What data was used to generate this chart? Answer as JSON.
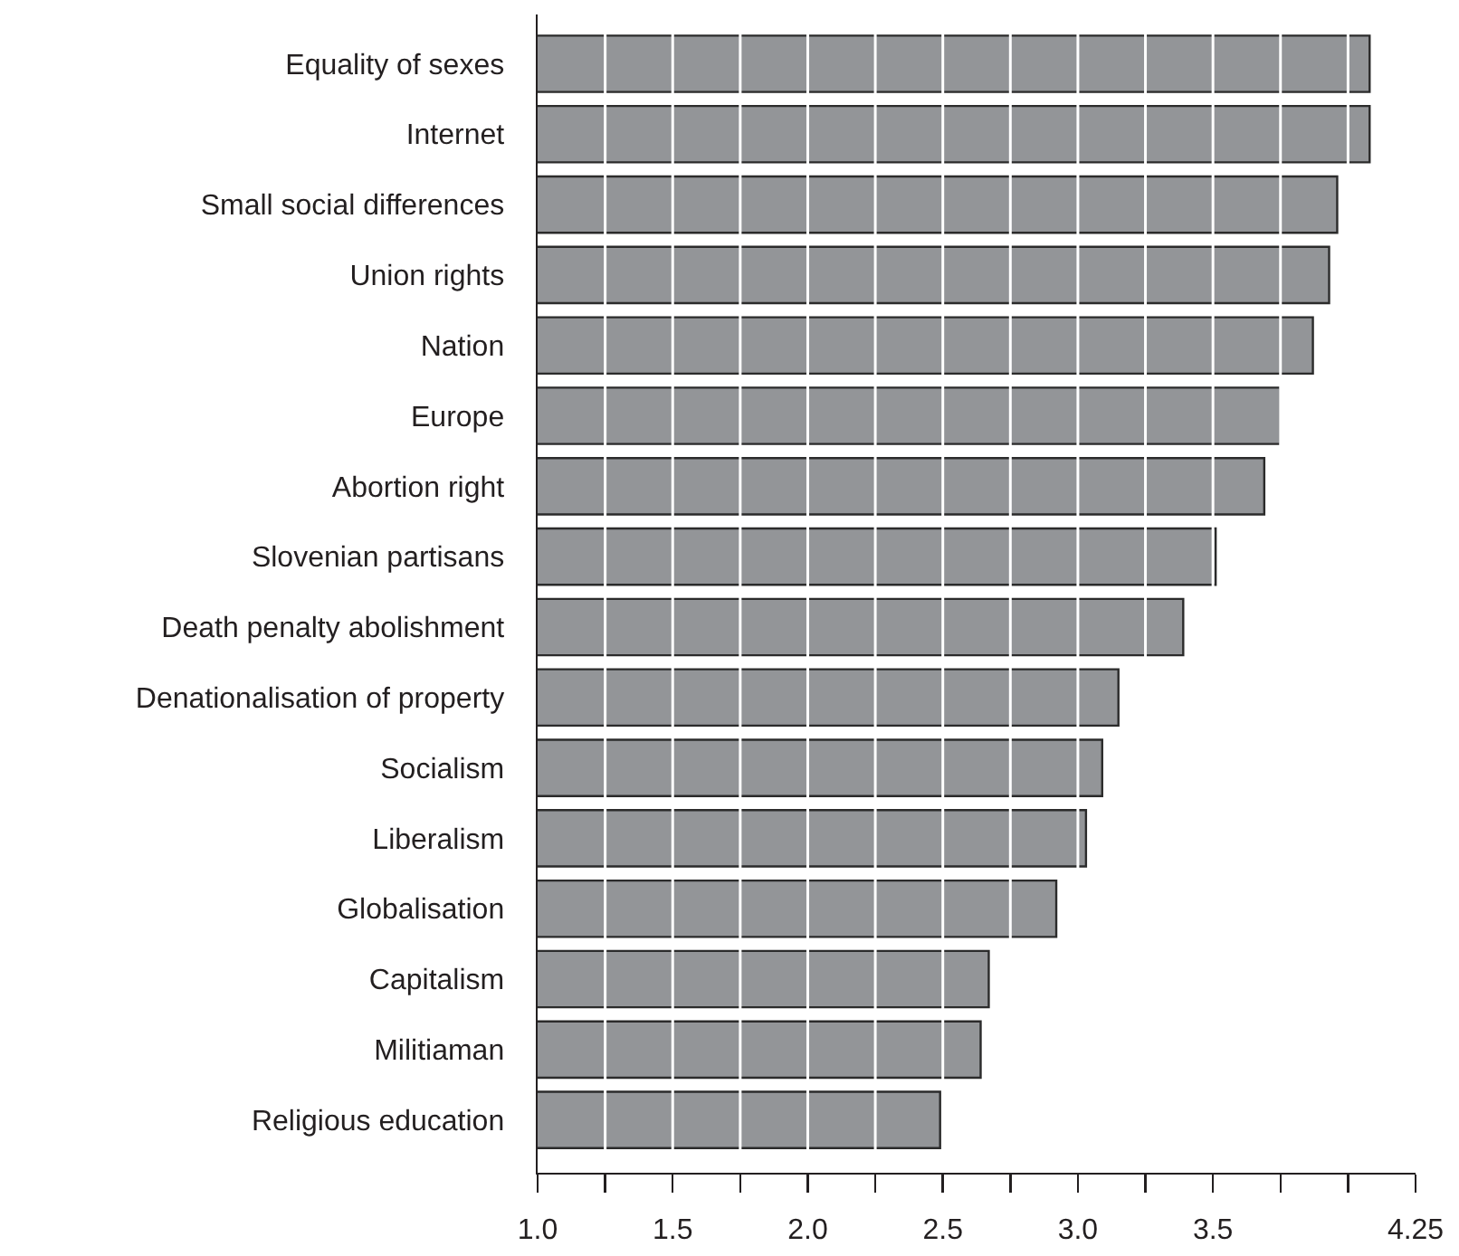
{
  "chart_data": {
    "type": "bar",
    "orientation": "horizontal",
    "categories": [
      "Equality of sexes",
      "Internet",
      "Small social differences",
      "Union rights",
      "Nation",
      "Europe",
      "Abortion right",
      "Slovenian partisans",
      "Death penalty abolishment",
      "Denationalisation of property",
      "Socialism",
      "Liberalism",
      "Globalisation",
      "Capitalism",
      "Militiaman",
      "Religious education"
    ],
    "values": [
      4.08,
      4.08,
      3.96,
      3.93,
      3.87,
      3.75,
      3.69,
      3.51,
      3.39,
      3.15,
      3.09,
      3.03,
      2.92,
      2.67,
      2.64,
      2.49
    ],
    "color": "#939598",
    "xlim": [
      1.0,
      4.25
    ],
    "xticks": [
      {
        "value": 1.0,
        "label": "1.0"
      },
      {
        "value": 1.25,
        "label": null
      },
      {
        "value": 1.5,
        "label": "1.5"
      },
      {
        "value": 1.75,
        "label": null
      },
      {
        "value": 2.0,
        "label": "2.0"
      },
      {
        "value": 2.25,
        "label": null
      },
      {
        "value": 2.5,
        "label": "2.5"
      },
      {
        "value": 2.75,
        "label": null
      },
      {
        "value": 3.0,
        "label": "3.0"
      },
      {
        "value": 3.25,
        "label": null
      },
      {
        "value": 3.5,
        "label": "3.5"
      },
      {
        "value": 3.75,
        "label": null
      },
      {
        "value": 4.0,
        "label": null
      },
      {
        "value": 4.25,
        "label": "4.25"
      }
    ],
    "grid": "x"
  }
}
